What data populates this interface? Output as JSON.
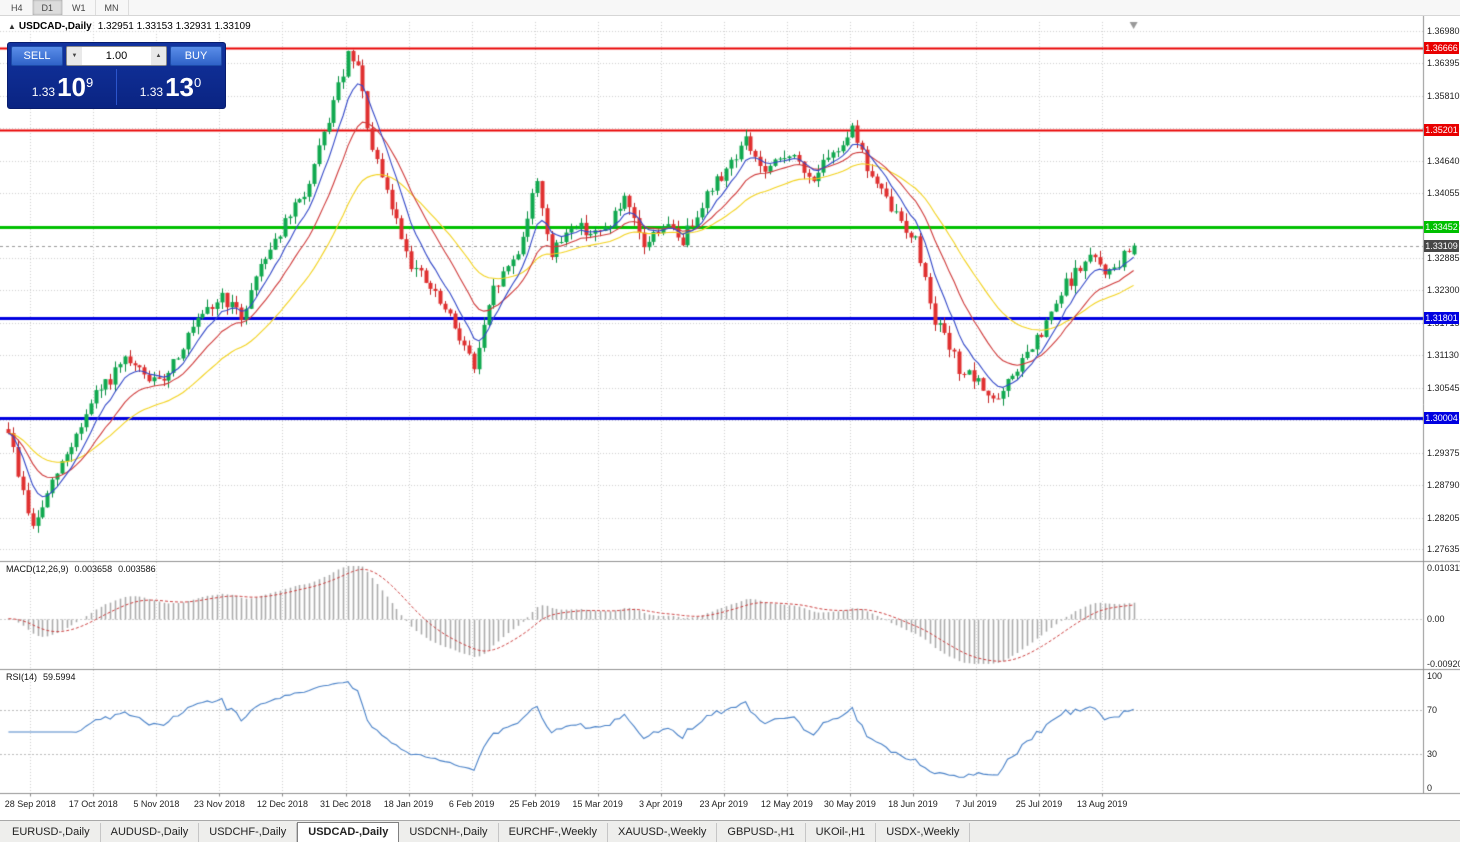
{
  "toolbar": {
    "periods": [
      {
        "label": "H4",
        "active": false
      },
      {
        "label": "D1",
        "active": true
      },
      {
        "label": "W1",
        "active": false
      },
      {
        "label": "MN",
        "active": false
      }
    ]
  },
  "chart": {
    "collapse_arrow": "▲",
    "symbol_period": "USDCAD-,Daily",
    "ohlc_text": "1.32951 1.33153 1.32931 1.33109"
  },
  "trade_panel": {
    "sell_label": "SELL",
    "buy_label": "BUY",
    "volume": "1.00",
    "vol_down_glyph": "▼",
    "vol_up_glyph": "▲",
    "sell_price": {
      "prefix": "1.33",
      "big": "10",
      "sup": "9"
    },
    "buy_price": {
      "prefix": "1.33",
      "big": "13",
      "sup": "0"
    }
  },
  "chart_data": {
    "type": "candlestick",
    "symbol": "USDCAD",
    "timeframe": "Daily",
    "last_ohlc": {
      "o": 1.32951,
      "h": 1.33153,
      "l": 1.32931,
      "c": 1.33109
    },
    "price_axis_ticks": [
      "1.36980",
      "1.36395",
      "1.35810",
      "1.35225",
      "1.34640",
      "1.34055",
      "1.33470",
      "1.32885",
      "1.32300",
      "1.31715",
      "1.31130",
      "1.30545",
      "1.29960",
      "1.29375",
      "1.28790",
      "1.28205",
      "1.27635"
    ],
    "levels": [
      {
        "price": 1.36666,
        "label": "1.36666",
        "color": "#e80000",
        "width": 2
      },
      {
        "price": 1.35201,
        "label": "1.35201",
        "color": "#e80000",
        "width": 2
      },
      {
        "price": 1.33452,
        "label": "1.33452",
        "color": "#00c000",
        "width": 3
      },
      {
        "price": 1.31801,
        "label": "1.31801",
        "color": "#0000e0",
        "width": 3
      },
      {
        "price": 1.30004,
        "label": "1.30004",
        "color": "#0000e0",
        "width": 3
      }
    ],
    "current_price": {
      "price": 1.33109,
      "label": "1.33109",
      "color": "#474747"
    },
    "series": {
      "count": 233,
      "seed": 9,
      "volatility": 0.0012,
      "anchors": [
        [
          0,
          1.298
        ],
        [
          2,
          1.29
        ],
        [
          5,
          1.28
        ],
        [
          10,
          1.29
        ],
        [
          18,
          1.304
        ],
        [
          24,
          1.31
        ],
        [
          31,
          1.306
        ],
        [
          38,
          1.316
        ],
        [
          44,
          1.322
        ],
        [
          48,
          1.318
        ],
        [
          52,
          1.328
        ],
        [
          57,
          1.335
        ],
        [
          62,
          1.342
        ],
        [
          66,
          1.354
        ],
        [
          70,
          1.365
        ],
        [
          72,
          1.363
        ],
        [
          75,
          1.348
        ],
        [
          79,
          1.338
        ],
        [
          83,
          1.328
        ],
        [
          88,
          1.322
        ],
        [
          93,
          1.315
        ],
        [
          96,
          1.309
        ],
        [
          100,
          1.323
        ],
        [
          105,
          1.33
        ],
        [
          109,
          1.343
        ],
        [
          112,
          1.329
        ],
        [
          116,
          1.335
        ],
        [
          122,
          1.333
        ],
        [
          127,
          1.339
        ],
        [
          131,
          1.331
        ],
        [
          135,
          1.335
        ],
        [
          139,
          1.332
        ],
        [
          143,
          1.339
        ],
        [
          148,
          1.345
        ],
        [
          152,
          1.35
        ],
        [
          156,
          1.344
        ],
        [
          161,
          1.348
        ],
        [
          165,
          1.343
        ],
        [
          170,
          1.347
        ],
        [
          174,
          1.353
        ],
        [
          177,
          1.345
        ],
        [
          181,
          1.339
        ],
        [
          187,
          1.332
        ],
        [
          191,
          1.318
        ],
        [
          196,
          1.309
        ],
        [
          200,
          1.306
        ],
        [
          204,
          1.303
        ],
        [
          208,
          1.309
        ],
        [
          213,
          1.315
        ],
        [
          218,
          1.324
        ],
        [
          223,
          1.329
        ],
        [
          227,
          1.326
        ],
        [
          232,
          1.331
        ]
      ]
    },
    "moving_averages": [
      {
        "period": 30,
        "color": "#f2d21f"
      },
      {
        "period": 15,
        "color": "#cf3a3a"
      },
      {
        "period": 7,
        "color": "#3348c8"
      }
    ],
    "date_labels": [
      "28 Sep 2018",
      "17 Oct 2018",
      "5 Nov 2018",
      "23 Nov 2018",
      "12 Dec 2018",
      "31 Dec 2018",
      "18 Jan 2019",
      "6 Feb 2019",
      "25 Feb 2019",
      "15 Mar 2019",
      "3 Apr 2019",
      "23 Apr 2019",
      "12 May 2019",
      "30 May 2019",
      "18 Jun 2019",
      "7 Jul 2019",
      "25 Jul 2019",
      "13 Aug 2019"
    ],
    "first_label_bar": 5,
    "label_step": 13
  },
  "macd": {
    "name": "MACD(12,26,9)",
    "value_main": "0.003658",
    "value_signal": "0.003586",
    "axis": [
      "0.010311",
      "0.00",
      "-0.009209"
    ],
    "range": [
      -0.0092,
      0.0103
    ],
    "fast": 12,
    "slow": 26,
    "signal": 9,
    "histogram_color": "#ababab",
    "signal_color": "#cc4040"
  },
  "rsi": {
    "name": "RSI(14)",
    "value": "59.5994",
    "axis": [
      "100",
      "70",
      "30",
      "0"
    ],
    "levels": [
      70,
      30
    ],
    "period": 14,
    "line_color": "#4a82c8"
  },
  "tabs": [
    {
      "label": "EURUSD-,Daily",
      "active": false
    },
    {
      "label": "AUDUSD-,Daily",
      "active": false
    },
    {
      "label": "USDCHF-,Daily",
      "active": false
    },
    {
      "label": "USDCAD-,Daily",
      "active": true
    },
    {
      "label": "USDCNH-,Daily",
      "active": false
    },
    {
      "label": "EURCHF-,Weekly",
      "active": false
    },
    {
      "label": "XAUUSD-,Weekly",
      "active": false
    },
    {
      "label": "GBPUSD-,H1",
      "active": false
    },
    {
      "label": "UKOil-,H1",
      "active": false
    },
    {
      "label": "USDX-,Weekly",
      "active": false
    }
  ]
}
